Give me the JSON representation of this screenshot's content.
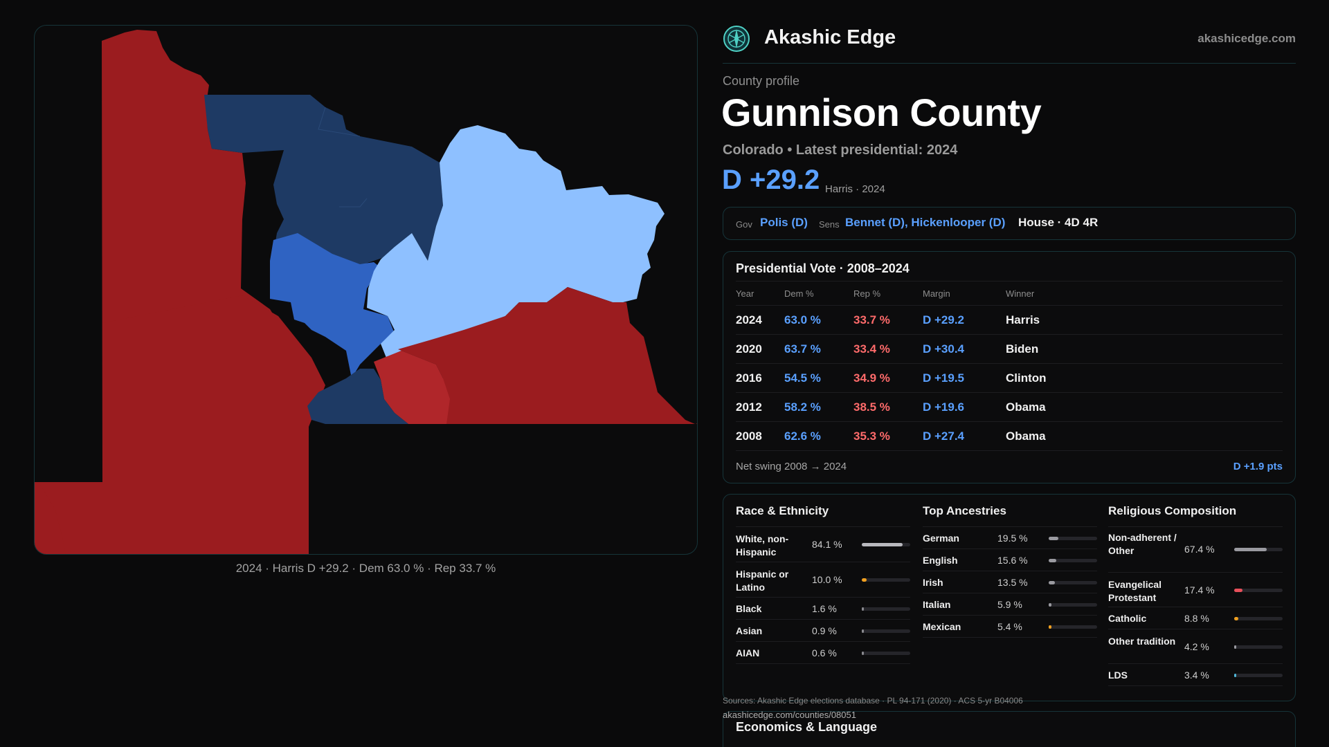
{
  "brand": {
    "name": "Akashic Edge",
    "url": "akashicedge.com",
    "logo_icon": "compass-rose-icon",
    "accent": "#4fd1c5"
  },
  "profile": {
    "eyebrow": "County profile",
    "county": "Gunnison County",
    "subtitle": "Colorado • Latest presidential: 2024",
    "margin": "D +29.2",
    "margin_note": "Harris · 2024"
  },
  "offices": {
    "gov_label": "Gov",
    "gov_value": "Polis (D)",
    "sens_label": "Sens",
    "sens_value": "Bennet (D), Hickenlooper (D)",
    "house_value": "House · 4D 4R"
  },
  "presidential": {
    "title": "Presidential Vote · 2008–2024",
    "columns": [
      "Year",
      "Dem %",
      "Rep %",
      "Margin",
      "Winner"
    ],
    "rows": [
      {
        "year": "2024",
        "dem": "63.0 %",
        "rep": "33.7 %",
        "margin": "D +29.2",
        "winner": "Harris"
      },
      {
        "year": "2020",
        "dem": "63.7 %",
        "rep": "33.4 %",
        "margin": "D +30.4",
        "winner": "Biden"
      },
      {
        "year": "2016",
        "dem": "54.5 %",
        "rep": "34.9 %",
        "margin": "D +19.5",
        "winner": "Clinton"
      },
      {
        "year": "2012",
        "dem": "58.2 %",
        "rep": "38.5 %",
        "margin": "D +19.6",
        "winner": "Obama"
      },
      {
        "year": "2008",
        "dem": "62.6 %",
        "rep": "35.3 %",
        "margin": "D +27.4",
        "winner": "Obama"
      }
    ],
    "swing_label": "Net swing 2008 → 2024",
    "swing_value": "D +1.9 pts"
  },
  "race": {
    "title": "Race & Ethnicity",
    "items": [
      {
        "label": "White, non-Hispanic",
        "value": "84.1 %",
        "share": 0.841,
        "color": "#b8b8bd"
      },
      {
        "label": "Hispanic or Latino",
        "value": "10.0 %",
        "share": 0.1,
        "color": "#f0a020"
      },
      {
        "label": "Black",
        "value": "1.6 %",
        "share": 0.016,
        "color": "#8a8a8f"
      },
      {
        "label": "Asian",
        "value": "0.9 %",
        "share": 0.009,
        "color": "#8a8a8f"
      },
      {
        "label": "AIAN",
        "value": "0.6 %",
        "share": 0.006,
        "color": "#8a8a8f"
      }
    ]
  },
  "ancestry": {
    "title": "Top Ancestries",
    "items": [
      {
        "label": "German",
        "value": "19.5 %",
        "share": 0.195,
        "color": "#9a9aa0"
      },
      {
        "label": "English",
        "value": "15.6 %",
        "share": 0.156,
        "color": "#9a9aa0"
      },
      {
        "label": "Irish",
        "value": "13.5 %",
        "share": 0.135,
        "color": "#9a9aa0"
      },
      {
        "label": "Italian",
        "value": "5.9 %",
        "share": 0.059,
        "color": "#9a9aa0"
      },
      {
        "label": "Mexican",
        "value": "5.4 %",
        "share": 0.054,
        "color": "#f0a020"
      }
    ]
  },
  "religion": {
    "title": "Religious Composition",
    "items": [
      {
        "label": "Non-adherent / Other",
        "value": "67.4 %",
        "share": 0.674,
        "color": "#9a9aa0"
      },
      {
        "label": "Evangelical Protestant",
        "value": "17.4 %",
        "share": 0.174,
        "color": "#e8505b"
      },
      {
        "label": "Catholic",
        "value": "8.8 %",
        "share": 0.088,
        "color": "#f0a020"
      },
      {
        "label": "Other tradition",
        "value": "4.2 %",
        "share": 0.042,
        "color": "#9a9aa0"
      },
      {
        "label": "LDS",
        "value": "3.4 %",
        "share": 0.034,
        "color": "#4fb6d6"
      }
    ]
  },
  "sources": "Sources: Akashic Edge elections database · PL 94-171 (2020) · ACS 5-yr B04006",
  "county_url": "akashicedge.com/counties/08051",
  "econ_title": "Economics & Language",
  "map": {
    "caption": "2024 · Harris D +29.2 · Dem 63.0 % · Rep 33.7 %",
    "colors": {
      "strong_rep": "#9b1c1f",
      "rep": "#b0262a",
      "strong_dem": "#1e3a64",
      "dem": "#2f63c2",
      "focus": "#8ec0ff"
    }
  }
}
